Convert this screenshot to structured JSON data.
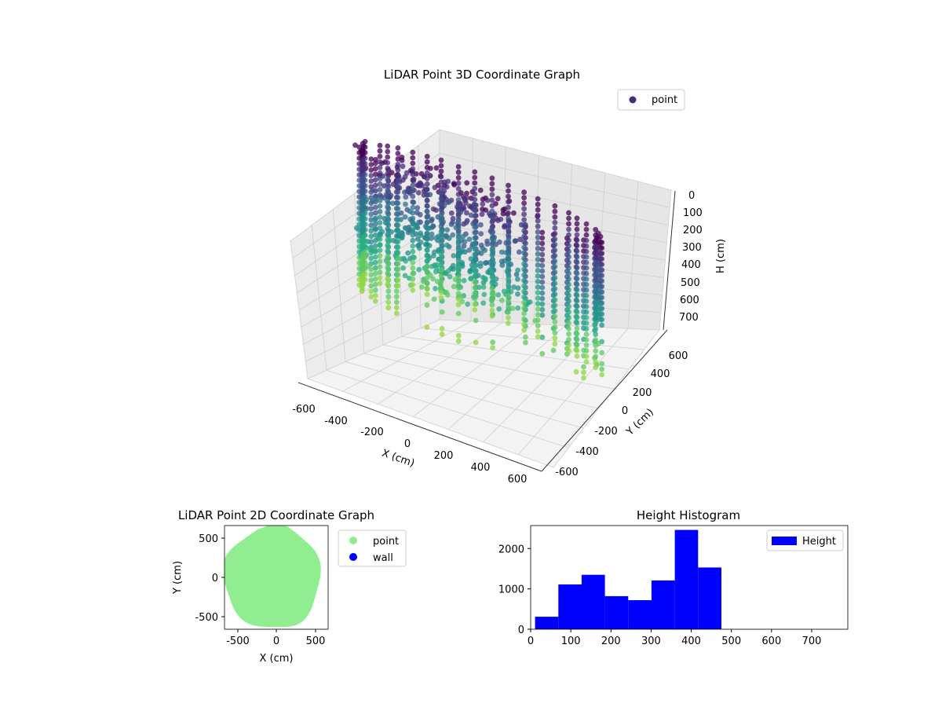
{
  "chart_data": [
    {
      "type": "scatter",
      "dimension": "3d",
      "title": "LiDAR Point 3D Coordinate Graph",
      "xlabel": "X (cm)",
      "ylabel": "Y (cm)",
      "zlabel": "H (cm)",
      "xticks": [
        -600,
        -400,
        -200,
        0,
        200,
        400,
        600
      ],
      "yticks": [
        -600,
        -400,
        -200,
        0,
        200,
        400,
        600
      ],
      "zticks": [
        0,
        100,
        200,
        300,
        400,
        500,
        600,
        700
      ],
      "xlim": [
        -650,
        650
      ],
      "ylim": [
        -650,
        650
      ],
      "zlim": [
        790,
        0
      ],
      "z_axis_inverted": true,
      "colormap": "viridis",
      "legend": {
        "placement": "top-right",
        "entries": [
          {
            "label": "point",
            "color": "#472c7a"
          }
        ]
      },
      "grid": true
    },
    {
      "type": "scatter",
      "title": "LiDAR Point 2D Coordinate Graph",
      "xlabel": "X (cm)",
      "ylabel": "Y (cm)",
      "xticks": [
        -500,
        0,
        500
      ],
      "yticks": [
        -500,
        0,
        500
      ],
      "xlim": [
        -660,
        660
      ],
      "ylim": [
        -660,
        660
      ],
      "region_radius": 600,
      "series": [
        {
          "name": "point",
          "color": "#90ee90"
        },
        {
          "name": "wall",
          "color": "#0000ff"
        }
      ],
      "legend": {
        "placement": "outside-right"
      },
      "grid": false
    },
    {
      "type": "bar",
      "subtype": "histogram",
      "title": "Height Histogram",
      "xlabel": "",
      "ylabel": "",
      "xticks": [
        0,
        100,
        200,
        300,
        400,
        500,
        600,
        700
      ],
      "yticks": [
        0,
        1000,
        2000
      ],
      "xlim": [
        0,
        790
      ],
      "ylim": [
        0,
        2570
      ],
      "bin_edges": [
        11,
        69,
        127,
        185,
        243,
        301,
        359,
        417,
        475
      ],
      "series": [
        {
          "name": "Height",
          "color": "#0000ff",
          "values": [
            310,
            1110,
            1350,
            820,
            720,
            1210,
            2460,
            1530
          ]
        }
      ],
      "legend": {
        "placement": "top-right"
      },
      "grid": false
    }
  ]
}
